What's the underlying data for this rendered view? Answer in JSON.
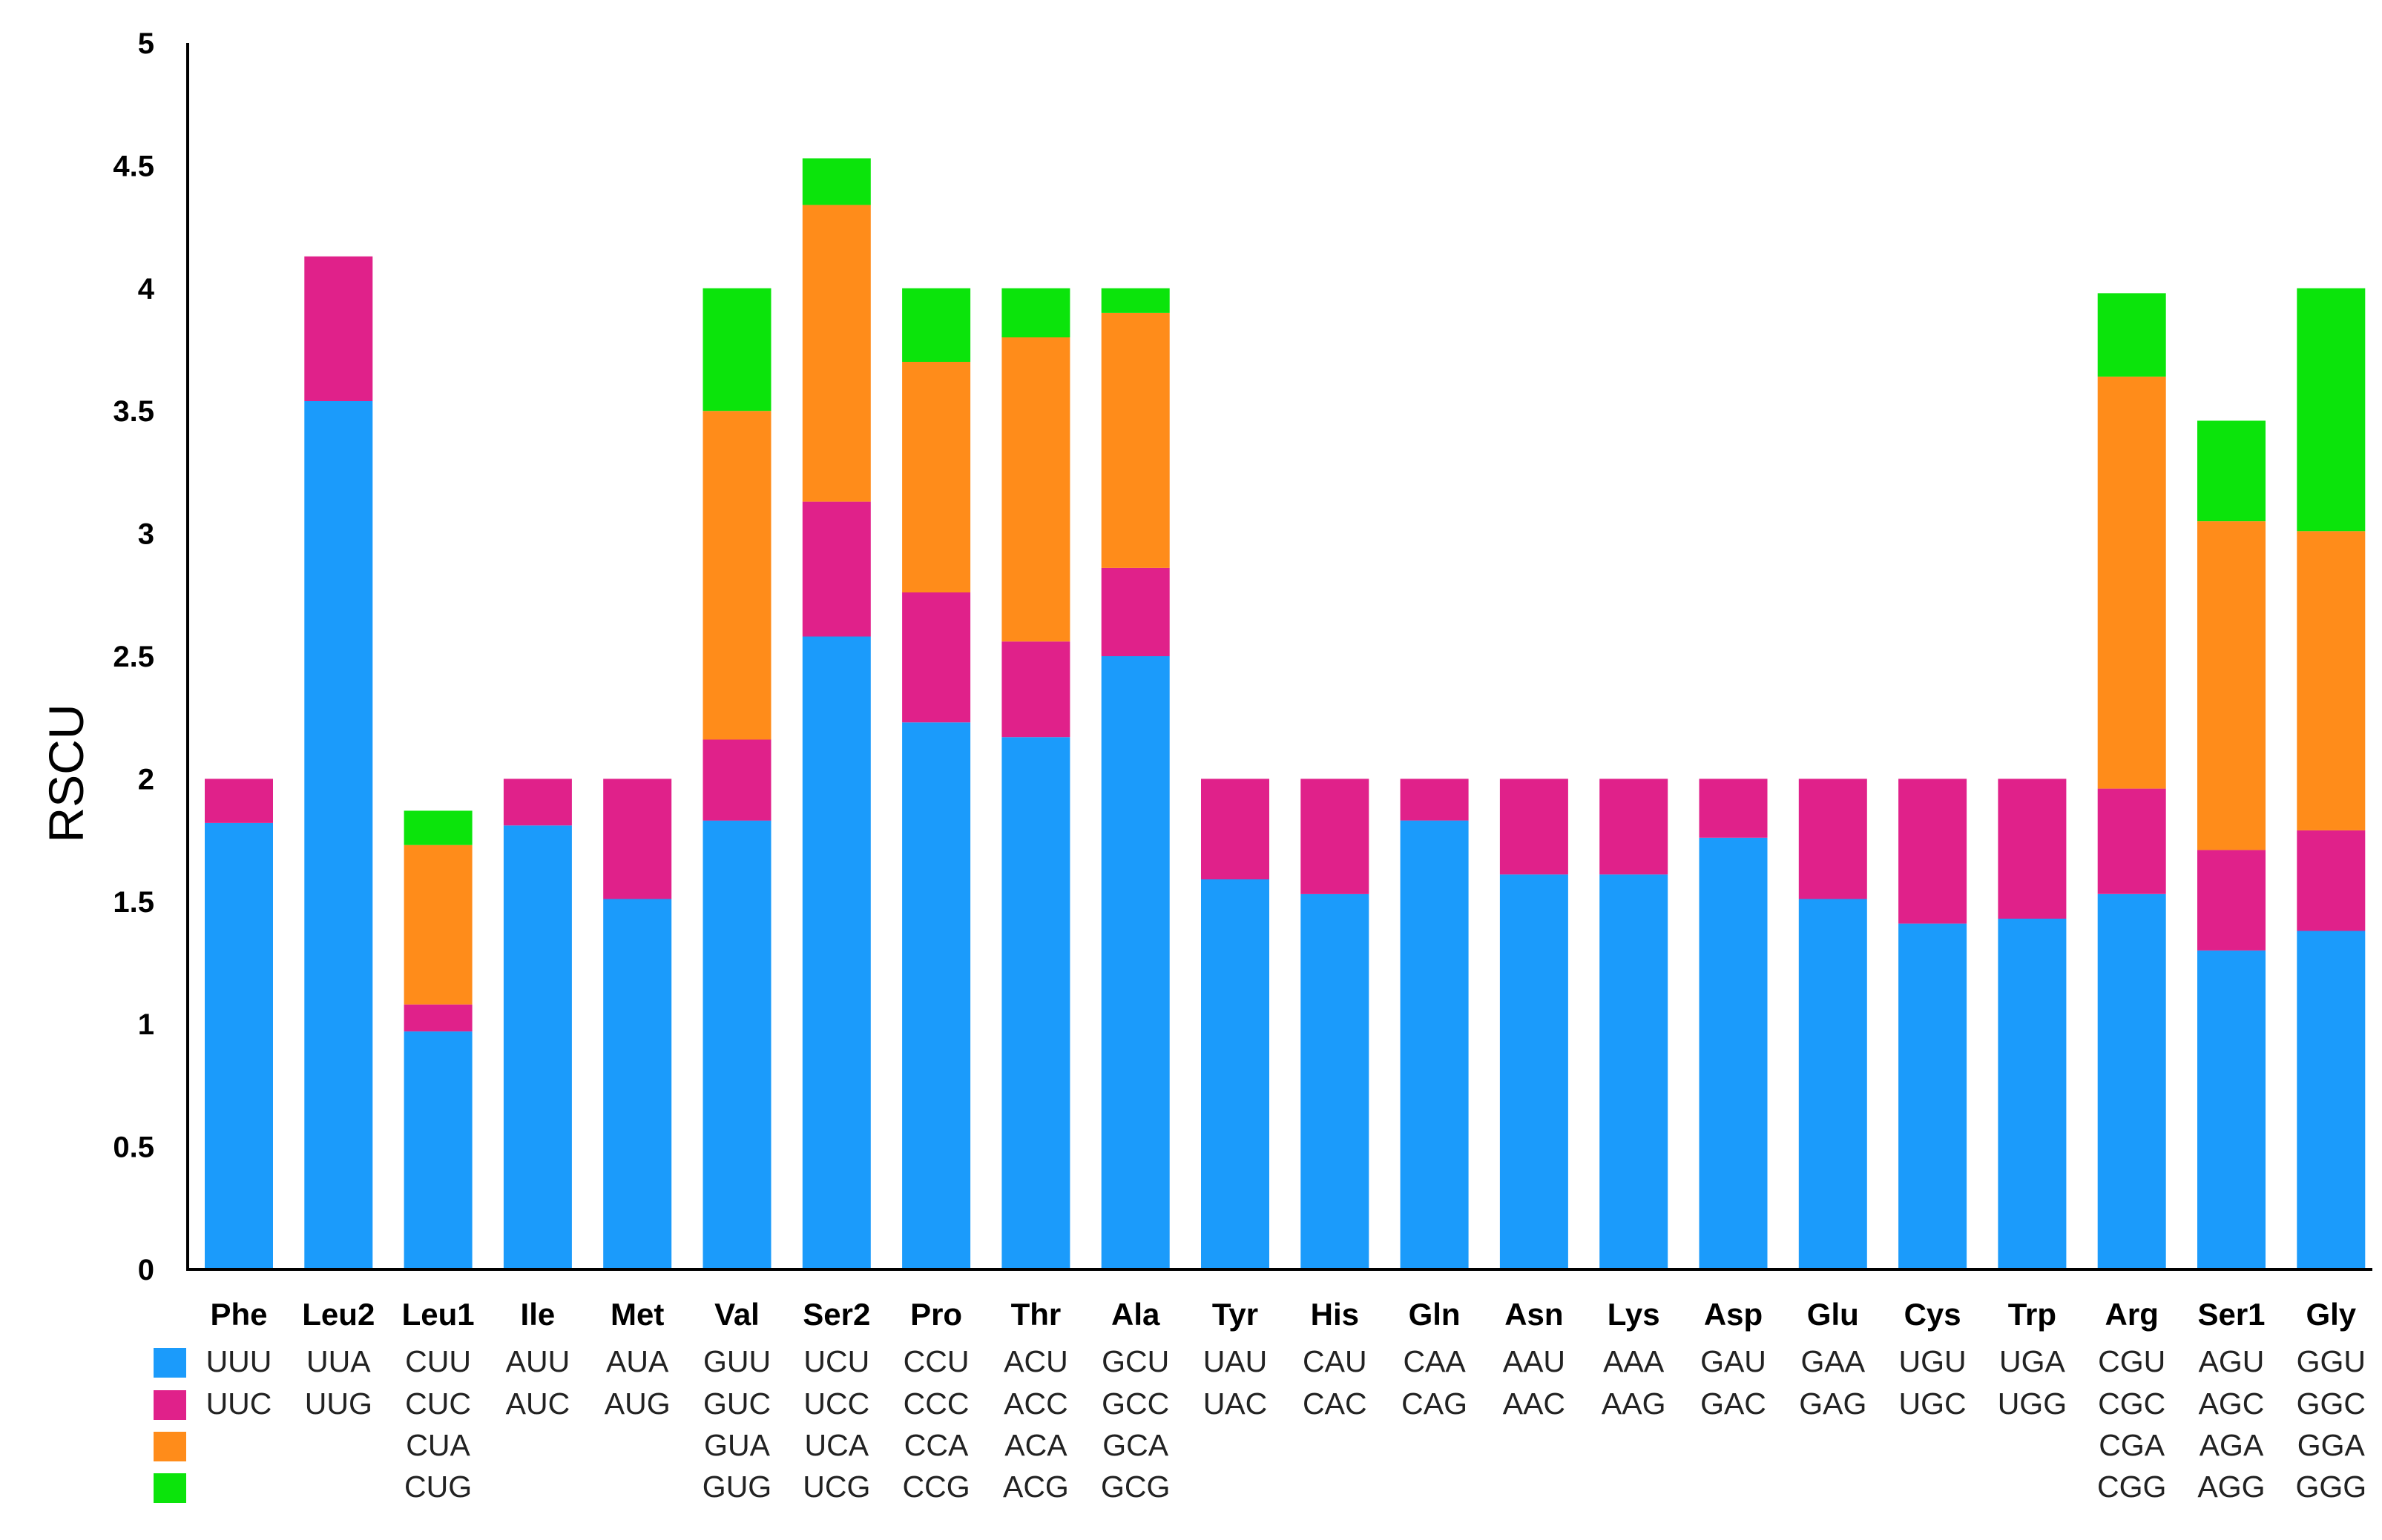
{
  "chart_data": {
    "type": "bar",
    "stacked": true,
    "ylabel": "RSCU",
    "ylim": [
      0,
      5
    ],
    "yticks": [
      "0",
      "0.5",
      "1",
      "1.5",
      "2",
      "2.5",
      "3",
      "3.5",
      "4",
      "4.5",
      "5"
    ],
    "grid": false,
    "legend": "bottom-left",
    "colors": [
      "#1b9bfb",
      "#e0218a",
      "#ff8c1a",
      "#0be40b"
    ],
    "categories": [
      "Phe",
      "Leu2",
      "Leu1",
      "Ile",
      "Met",
      "Val",
      "Ser2",
      "Pro",
      "Thr",
      "Ala",
      "Tyr",
      "His",
      "Gln",
      "Asn",
      "Lys",
      "Asp",
      "Glu",
      "Cys",
      "Trp",
      "Arg",
      "Ser1",
      "Gly"
    ],
    "series": [
      {
        "values": [
          1.82,
          3.54,
          0.97,
          1.81,
          1.51,
          1.83,
          2.58,
          2.23,
          2.17,
          2.5,
          1.59,
          1.53,
          1.83,
          1.61,
          1.61,
          1.76,
          1.51,
          1.41,
          1.43,
          1.53,
          1.3,
          1.38
        ]
      },
      {
        "values": [
          0.18,
          0.59,
          0.11,
          0.19,
          0.49,
          0.33,
          0.55,
          0.53,
          0.39,
          0.36,
          0.41,
          0.47,
          0.17,
          0.39,
          0.39,
          0.24,
          0.49,
          0.59,
          0.57,
          0.43,
          0.41,
          0.41
        ]
      },
      {
        "values": [
          0,
          0,
          0.65,
          0,
          0,
          1.34,
          1.21,
          0.94,
          1.24,
          1.04,
          0,
          0,
          0,
          0,
          0,
          0,
          0,
          0,
          0,
          1.68,
          1.34,
          1.22
        ]
      },
      {
        "values": [
          0,
          0,
          0.14,
          0,
          0,
          0.5,
          0.19,
          0.3,
          0.2,
          0.1,
          0,
          0,
          0,
          0,
          0,
          0,
          0,
          0,
          0,
          0.34,
          0.41,
          0.99
        ]
      }
    ],
    "codons": [
      [
        "UUU",
        "UUC"
      ],
      [
        "UUA",
        "UUG"
      ],
      [
        "CUU",
        "CUC",
        "CUA",
        "CUG"
      ],
      [
        "AUU",
        "AUC"
      ],
      [
        "AUA",
        "AUG"
      ],
      [
        "GUU",
        "GUC",
        "GUA",
        "GUG"
      ],
      [
        "UCU",
        "UCC",
        "UCA",
        "UCG"
      ],
      [
        "CCU",
        "CCC",
        "CCA",
        "CCG"
      ],
      [
        "ACU",
        "ACC",
        "ACA",
        "ACG"
      ],
      [
        "GCU",
        "GCC",
        "GCA",
        "GCG"
      ],
      [
        "UAU",
        "UAC"
      ],
      [
        "CAU",
        "CAC"
      ],
      [
        "CAA",
        "CAG"
      ],
      [
        "AAU",
        "AAC"
      ],
      [
        "AAA",
        "AAG"
      ],
      [
        "GAU",
        "GAC"
      ],
      [
        "GAA",
        "GAG"
      ],
      [
        "UGU",
        "UGC"
      ],
      [
        "UGA",
        "UGG"
      ],
      [
        "CGU",
        "CGC",
        "CGA",
        "CGG"
      ],
      [
        "AGU",
        "AGC",
        "AGA",
        "AGG"
      ],
      [
        "GGU",
        "GGC",
        "GGA",
        "GGG"
      ]
    ]
  }
}
